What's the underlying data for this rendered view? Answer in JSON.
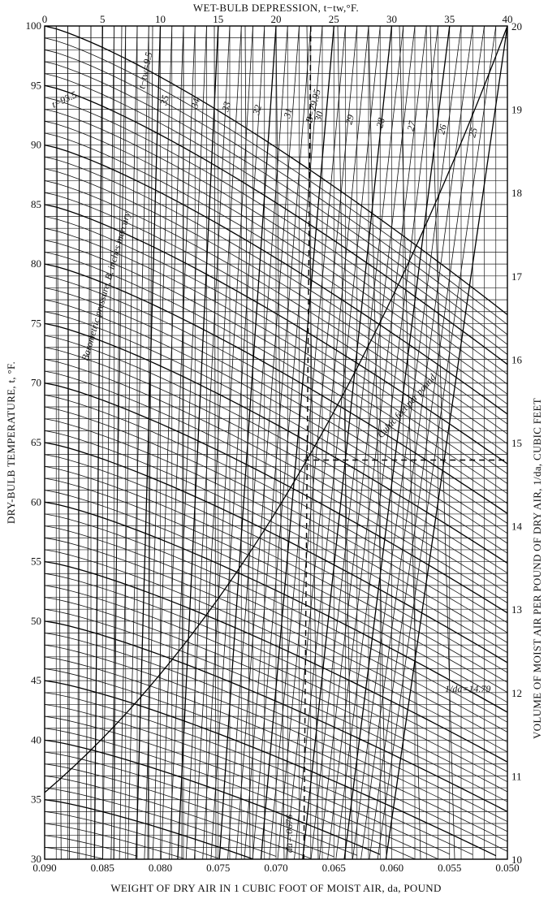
{
  "chart_data": {
    "type": "line",
    "title": "",
    "top_axis": {
      "label": "WET-BULB DEPRESSION, t−tw,°F.",
      "range": [
        0,
        40
      ],
      "ticks": [
        "0",
        "5",
        "10",
        "15",
        "20",
        "25",
        "30",
        "35",
        "40"
      ]
    },
    "left_axis": {
      "label": "DRY-BULB TEMPERATURE, t, °F.",
      "range": [
        30,
        100
      ],
      "ticks": [
        "30",
        "35",
        "40",
        "45",
        "50",
        "55",
        "60",
        "65",
        "70",
        "75",
        "80",
        "85",
        "90",
        "95",
        "100"
      ]
    },
    "bottom_axis": {
      "label": "WEIGHT OF DRY AIR IN 1 CUBIC FOOT OF MOIST AIR, da, POUND",
      "range": [
        0.09,
        0.05
      ],
      "ticks": [
        "0.090",
        "0.085",
        "0.080",
        "0.075",
        "0.070",
        "0.065",
        "0.060",
        "0.055",
        "0.050"
      ]
    },
    "right_axis": {
      "label": "VOLUME OF MOIST AIR PER POUND OF DRY AIR, 1/da, CUBIC FEET",
      "range": [
        10,
        20
      ],
      "ticks": [
        "10",
        "11",
        "12",
        "13",
        "14",
        "15",
        "16",
        "17",
        "18",
        "19",
        "20"
      ]
    },
    "barometer_lines": {
      "label": "Barometric pressure, B, inches mercury",
      "values": [
        "35",
        "34",
        "33",
        "32",
        "31",
        "30",
        "29",
        "28",
        "27",
        "26",
        "25"
      ]
    },
    "volume_line_label": "Cubic feet per pound",
    "annotations": {
      "t_value": "t=93.5",
      "tw_value": "t−tw=9.5",
      "b_value": "B=29.95",
      "da_value": "da=.0676",
      "inv_da_value": "1/da=14.79"
    },
    "grid": true,
    "legend": "none"
  }
}
